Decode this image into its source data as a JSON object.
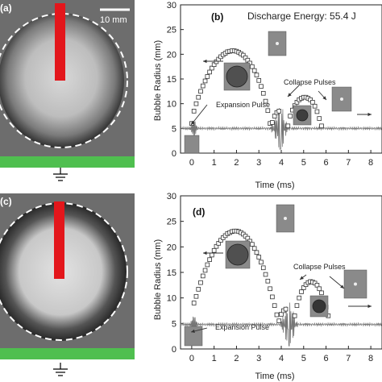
{
  "photos": {
    "a": {
      "label": "(a)",
      "scalebar": "10 mm"
    },
    "c": {
      "label": "(c)"
    }
  },
  "colors": {
    "electrode": "#e3161b",
    "ground_plate": "#4fbf4f",
    "photo_bg": "#6d6d6d"
  },
  "chart_data": [
    {
      "panel": "(b)",
      "type": "scatter",
      "title": "Discharge Energy: 55.4 J",
      "xlabel": "Time (ms)",
      "ylabel": "Bubble Radius (mm)",
      "xlim": [
        -0.5,
        8.5
      ],
      "ylim": [
        0,
        30
      ],
      "xticks": [
        0,
        1,
        2,
        3,
        4,
        5,
        6,
        7,
        8
      ],
      "yticks": [
        0,
        5,
        10,
        15,
        20,
        25,
        30
      ],
      "annotations": [
        "Expansion Pulse",
        "Collapse Pulses"
      ],
      "series": [
        {
          "kind": "bubble-radius",
          "x": [
            0.0,
            0.1,
            0.2,
            0.3,
            0.4,
            0.5,
            0.6,
            0.7,
            0.8,
            0.9,
            1.0,
            1.1,
            1.2,
            1.3,
            1.4,
            1.5,
            1.6,
            1.7,
            1.8,
            1.9,
            2.0,
            2.1,
            2.2,
            2.3,
            2.4,
            2.5,
            2.6,
            2.7,
            2.8,
            2.9,
            3.0,
            3.1,
            3.2,
            3.3,
            3.4,
            3.5,
            3.6,
            3.7,
            3.8,
            3.9,
            4.3,
            4.4,
            4.5,
            4.6,
            4.7,
            4.8,
            4.9,
            5.0,
            5.1,
            5.2,
            5.3,
            5.4,
            5.5,
            5.6,
            5.7,
            5.8
          ],
          "y": [
            6.0,
            8.5,
            10.0,
            11.3,
            12.5,
            13.6,
            14.6,
            15.5,
            16.4,
            17.2,
            17.9,
            18.5,
            19.0,
            19.5,
            19.9,
            20.2,
            20.5,
            20.6,
            20.7,
            20.7,
            20.6,
            20.4,
            20.1,
            19.8,
            19.3,
            18.8,
            18.2,
            17.5,
            16.7,
            15.8,
            14.7,
            13.5,
            12.1,
            10.5,
            8.6,
            6.0,
            6.2,
            7.5,
            8.2,
            8.5,
            5.5,
            7.5,
            8.7,
            9.6,
            10.3,
            10.8,
            11.1,
            11.3,
            11.3,
            11.1,
            10.8,
            10.3,
            9.5,
            8.4,
            7.0,
            5.5
          ]
        },
        {
          "kind": "pressure-signal",
          "baseline": 5.0
        }
      ]
    },
    {
      "panel": "(d)",
      "type": "scatter",
      "xlabel": "Time (ms)",
      "ylabel": "Bubble Radius (mm)",
      "xlim": [
        -0.5,
        8.5
      ],
      "ylim": [
        0,
        30
      ],
      "xticks": [
        0,
        1,
        2,
        3,
        4,
        5,
        6,
        7,
        8
      ],
      "yticks": [
        0,
        5,
        10,
        15,
        20,
        25,
        30
      ],
      "annotations": [
        "Expansion Pulse",
        "Collapse Pulses"
      ],
      "series": [
        {
          "kind": "bubble-radius",
          "x": [
            0.1,
            0.2,
            0.3,
            0.4,
            0.5,
            0.6,
            0.7,
            0.8,
            0.9,
            1.0,
            1.1,
            1.2,
            1.3,
            1.4,
            1.5,
            1.6,
            1.7,
            1.8,
            1.9,
            2.0,
            2.1,
            2.2,
            2.3,
            2.4,
            2.5,
            2.6,
            2.7,
            2.8,
            2.9,
            3.0,
            3.1,
            3.2,
            3.3,
            3.4,
            3.5,
            3.6,
            3.7,
            3.8,
            3.9,
            4.0,
            4.1,
            4.2,
            4.6,
            4.7,
            4.8,
            4.9,
            5.0,
            5.1,
            5.2,
            5.3,
            5.4,
            5.5,
            5.6,
            5.7,
            5.8,
            5.9,
            6.0,
            6.1
          ],
          "y": [
            9.0,
            10.3,
            11.7,
            13.0,
            14.3,
            15.4,
            16.5,
            17.5,
            18.4,
            19.3,
            20.1,
            20.7,
            21.3,
            21.8,
            22.2,
            22.6,
            22.8,
            23.0,
            23.1,
            23.1,
            23.0,
            22.8,
            22.5,
            22.1,
            21.7,
            21.1,
            20.5,
            19.7,
            18.9,
            18.0,
            17.0,
            15.9,
            14.6,
            13.3,
            11.8,
            10.2,
            8.5,
            6.7,
            5.5,
            6.8,
            7.5,
            7.8,
            6.5,
            8.5,
            10.0,
            11.2,
            12.0,
            12.6,
            13.0,
            13.2,
            13.1,
            12.9,
            12.5,
            11.8,
            11.0,
            9.8,
            8.2,
            6.5
          ]
        },
        {
          "kind": "pressure-signal",
          "baseline": 4.8
        }
      ]
    }
  ]
}
